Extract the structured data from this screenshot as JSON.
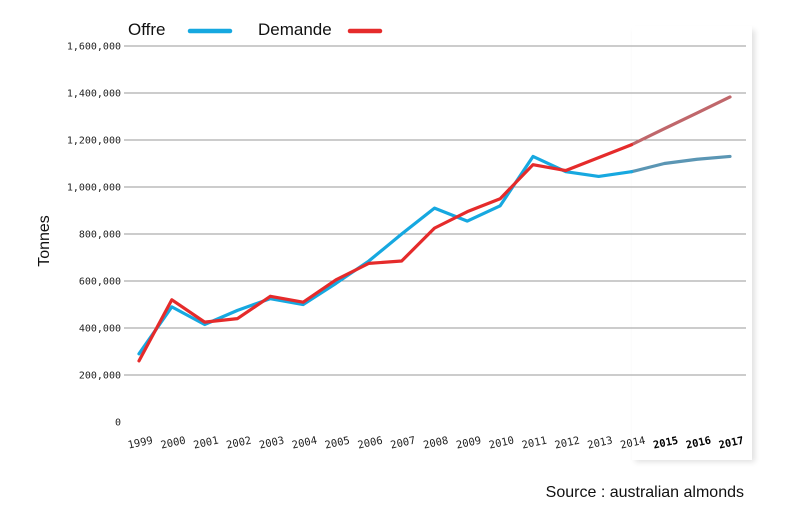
{
  "chart_data": {
    "type": "line",
    "ylabel": "Tonnes",
    "xlabel": "",
    "ylim": [
      0,
      1600000
    ],
    "ytick_labels": [
      "0",
      "200,000",
      "400,000",
      "600,000",
      "800,000",
      "1,000,000",
      "1,200,000",
      "1,400,000",
      "1,600,000"
    ],
    "categories": [
      "1999",
      "2000",
      "2001",
      "2002",
      "2003",
      "2004",
      "2005",
      "2006",
      "2007",
      "2008",
      "2009",
      "2010",
      "2011",
      "2012",
      "2013",
      "2014",
      "2015",
      "2016",
      "2017"
    ],
    "forecast_categories": [
      "2014",
      "2015",
      "2016",
      "2017"
    ],
    "grid": "horizontal",
    "legend_position": "top-left",
    "series": [
      {
        "name": "Offre",
        "color": "#16a8e0",
        "forecast_color": "#5b96b4",
        "values": [
          290000,
          490000,
          415000,
          475000,
          525000,
          500000,
          590000,
          685000,
          800000,
          910000,
          855000,
          920000,
          1130000,
          1065000,
          1045000,
          1065000,
          1100000,
          1118000,
          1130000
        ]
      },
      {
        "name": "Demande",
        "color": "#e52b2b",
        "forecast_color": "#c0676b",
        "values": [
          260000,
          520000,
          425000,
          440000,
          535000,
          510000,
          605000,
          675000,
          685000,
          825000,
          895000,
          950000,
          1095000,
          1070000,
          1125000,
          1180000,
          1248000,
          1315000,
          1383000
        ]
      }
    ]
  },
  "source": "Source : australian almonds"
}
